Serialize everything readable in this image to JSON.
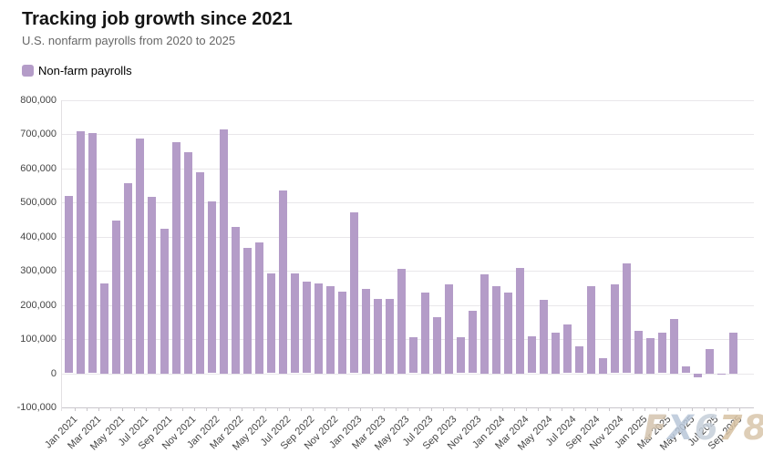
{
  "header": {
    "title": "Tracking job growth since 2021",
    "subtitle": "U.S. nonfarm payrolls from 2020 to 2025"
  },
  "legend": {
    "label": "Non-farm payrolls",
    "swatch_color": "#b49cc8"
  },
  "watermark": {
    "text": "FX678",
    "letter_colors": [
      "#d4c4ae",
      "#b9c7d9",
      "#c6cfda",
      "#d8c2a3",
      "#d9c6ab"
    ]
  },
  "chart_data": {
    "type": "bar",
    "title": "Tracking job growth since 2021",
    "subtitle": "U.S. nonfarm payrolls from 2020 to 2025",
    "series_name": "Non-farm payrolls",
    "bar_color": "#b49cc8",
    "grid": true,
    "legend_position": "top-left",
    "ylim": [
      -100000,
      800000
    ],
    "y_ticks": [
      {
        "value": 800000,
        "label": "800,000"
      },
      {
        "value": 700000,
        "label": "700,000"
      },
      {
        "value": 600000,
        "label": "600,000"
      },
      {
        "value": 500000,
        "label": "500,000"
      },
      {
        "value": 400000,
        "label": "400,000"
      },
      {
        "value": 300000,
        "label": "300,000"
      },
      {
        "value": 200000,
        "label": "200,000"
      },
      {
        "value": 100000,
        "label": "100,000"
      },
      {
        "value": 0,
        "label": "0"
      },
      {
        "value": -100000,
        "label": "-100,000"
      }
    ],
    "x_label_every": 2,
    "categories": [
      "Jan 2021",
      "Feb 2021",
      "Mar 2021",
      "Apr 2021",
      "May 2021",
      "Jun 2021",
      "Jul 2021",
      "Aug 2021",
      "Sep 2021",
      "Oct 2021",
      "Nov 2021",
      "Dec 2021",
      "Jan 2022",
      "Feb 2022",
      "Mar 2022",
      "Apr 2022",
      "May 2022",
      "Jun 2022",
      "Jul 2022",
      "Aug 2022",
      "Sep 2022",
      "Oct 2022",
      "Nov 2022",
      "Dec 2022",
      "Jan 2023",
      "Feb 2023",
      "Mar 2023",
      "Apr 2023",
      "May 2023",
      "Jun 2023",
      "Jul 2023",
      "Aug 2023",
      "Sep 2023",
      "Oct 2023",
      "Nov 2023",
      "Dec 2023",
      "Jan 2024",
      "Feb 2024",
      "Mar 2024",
      "Apr 2024",
      "May 2024",
      "Jun 2024",
      "Jul 2024",
      "Aug 2024",
      "Sep 2024",
      "Oct 2024",
      "Nov 2024",
      "Dec 2024",
      "Jan 2025",
      "Feb 2025",
      "Mar 2025",
      "Apr 2025",
      "May 2025",
      "Jun 2025",
      "Jul 2025",
      "Aug 2025",
      "Sep 2025"
    ],
    "values": [
      520000,
      710000,
      704000,
      263000,
      447000,
      557000,
      689000,
      517000,
      424000,
      677000,
      647000,
      588000,
      504000,
      714000,
      428000,
      368000,
      384000,
      293000,
      537000,
      292000,
      269000,
      263000,
      256000,
      239000,
      472000,
      248000,
      217000,
      217000,
      306000,
      105000,
      236000,
      165000,
      262000,
      105000,
      182000,
      290000,
      256000,
      236000,
      310000,
      108000,
      216000,
      118000,
      144000,
      78000,
      255000,
      44000,
      261000,
      323000,
      125000,
      102000,
      120000,
      158000,
      19000,
      -13000,
      72000,
      -4000,
      119000
    ]
  }
}
